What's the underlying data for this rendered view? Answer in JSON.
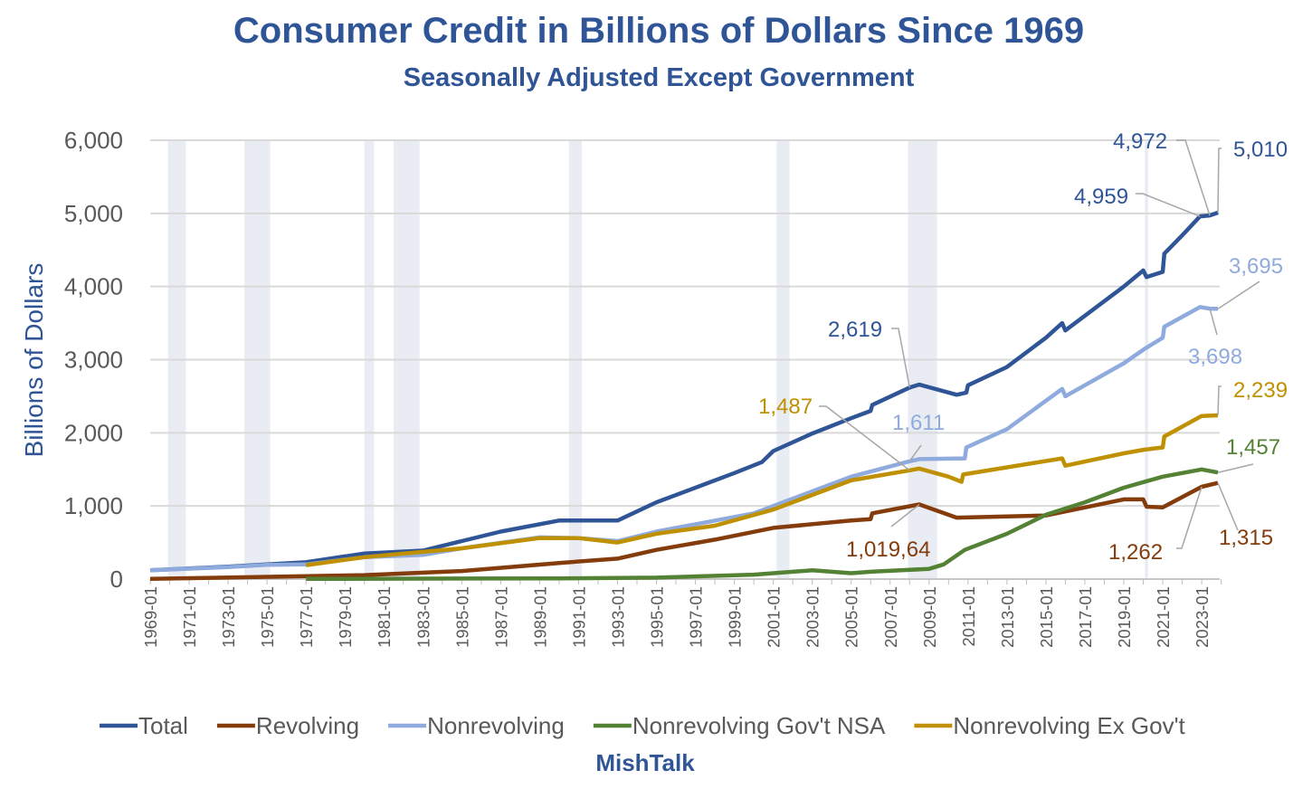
{
  "chart_data": {
    "type": "line",
    "title": "Consumer Credit in Billions of Dollars Since 1969",
    "subtitle": "Seasonally Adjusted Except Government",
    "ylabel": "Billions of Dollars",
    "xlabel": "",
    "ylim": [
      0,
      6000
    ],
    "yticks": [
      "0",
      "1,000",
      "2,000",
      "3,000",
      "4,000",
      "5,000",
      "6,000"
    ],
    "xticks": [
      "1969-01",
      "1971-01",
      "1973-01",
      "1975-01",
      "1977-01",
      "1979-01",
      "1981-01",
      "1983-01",
      "1985-01",
      "1987-01",
      "1989-01",
      "1991-01",
      "1993-01",
      "1995-01",
      "1997-01",
      "1999-01",
      "2001-01",
      "2003-01",
      "2005-01",
      "2007-01",
      "2009-01",
      "2011-01",
      "2013-01",
      "2015-01",
      "2017-01",
      "2019-01",
      "2021-01",
      "2023-01"
    ],
    "xlim": [
      "1969-01",
      "2023-11"
    ],
    "grid": "horizontal",
    "legend_position": "bottom",
    "recession_shading": [
      [
        "1969-12",
        "1970-11"
      ],
      [
        "1973-11",
        "1975-03"
      ],
      [
        "1980-01",
        "1980-07"
      ],
      [
        "1981-07",
        "1982-11"
      ],
      [
        "1990-07",
        "1991-03"
      ],
      [
        "2001-03",
        "2001-11"
      ],
      [
        "2007-12",
        "2009-06"
      ],
      [
        "2020-02",
        "2020-04"
      ]
    ],
    "series": [
      {
        "name": "Total",
        "color": "#2F5597",
        "points": [
          [
            "1969-01",
            120
          ],
          [
            "1973-01",
            170
          ],
          [
            "1975-01",
            200
          ],
          [
            "1977-01",
            230
          ],
          [
            "1980-01",
            350
          ],
          [
            "1983-01",
            390
          ],
          [
            "1985-01",
            520
          ],
          [
            "1987-01",
            650
          ],
          [
            "1990-01",
            800
          ],
          [
            "1993-01",
            800
          ],
          [
            "1995-01",
            1050
          ],
          [
            "1997-01",
            1250
          ],
          [
            "1999-01",
            1450
          ],
          [
            "2000-06",
            1600
          ],
          [
            "2001-01",
            1750
          ],
          [
            "2003-01",
            1990
          ],
          [
            "2005-01",
            2200
          ],
          [
            "2006-01",
            2300
          ],
          [
            "2006-02",
            2380
          ],
          [
            "2008-01",
            2619
          ],
          [
            "2008-07",
            2660
          ],
          [
            "2010-06",
            2520
          ],
          [
            "2010-12",
            2550
          ],
          [
            "2011-01",
            2650
          ],
          [
            "2013-01",
            2900
          ],
          [
            "2015-01",
            3300
          ],
          [
            "2015-11",
            3500
          ],
          [
            "2016-01",
            3400
          ],
          [
            "2019-01",
            4000
          ],
          [
            "2020-01",
            4220
          ],
          [
            "2020-03",
            4130
          ],
          [
            "2021-01",
            4200
          ],
          [
            "2021-02",
            4450
          ],
          [
            "2022-01",
            4700
          ],
          [
            "2022-12",
            4959
          ],
          [
            "2023-06",
            4972
          ],
          [
            "2023-11",
            5010
          ]
        ]
      },
      {
        "name": "Revolving",
        "color": "#843C0C",
        "points": [
          [
            "1969-01",
            2
          ],
          [
            "1977-01",
            40
          ],
          [
            "1980-01",
            55
          ],
          [
            "1985-01",
            110
          ],
          [
            "1990-01",
            220
          ],
          [
            "1993-01",
            280
          ],
          [
            "1995-01",
            400
          ],
          [
            "1998-01",
            540
          ],
          [
            "2001-01",
            700
          ],
          [
            "2005-01",
            800
          ],
          [
            "2006-01",
            820
          ],
          [
            "2006-02",
            900
          ],
          [
            "2008-07",
            1020
          ],
          [
            "2010-06",
            840
          ],
          [
            "2015-01",
            870
          ],
          [
            "2019-01",
            1090
          ],
          [
            "2020-01",
            1090
          ],
          [
            "2020-03",
            990
          ],
          [
            "2021-01",
            980
          ],
          [
            "2023-01",
            1262
          ],
          [
            "2023-11",
            1315
          ]
        ]
      },
      {
        "name": "Nonrevolving",
        "color": "#8FAADC",
        "points": [
          [
            "1969-01",
            120
          ],
          [
            "1973-01",
            165
          ],
          [
            "1975-01",
            195
          ],
          [
            "1977-01",
            200
          ],
          [
            "1980-01",
            300
          ],
          [
            "1983-01",
            330
          ],
          [
            "1985-01",
            420
          ],
          [
            "1989-01",
            570
          ],
          [
            "1991-01",
            560
          ],
          [
            "1993-01",
            520
          ],
          [
            "1995-01",
            650
          ],
          [
            "1997-01",
            750
          ],
          [
            "2000-01",
            900
          ],
          [
            "2002-01",
            1100
          ],
          [
            "2005-01",
            1400
          ],
          [
            "2008-01",
            1611
          ],
          [
            "2008-07",
            1640
          ],
          [
            "2010-11",
            1650
          ],
          [
            "2010-12",
            1800
          ],
          [
            "2013-01",
            2050
          ],
          [
            "2015-11",
            2600
          ],
          [
            "2016-01",
            2500
          ],
          [
            "2019-01",
            2950
          ],
          [
            "2020-02",
            3150
          ],
          [
            "2021-01",
            3300
          ],
          [
            "2021-02",
            3450
          ],
          [
            "2022-12",
            3720
          ],
          [
            "2023-06",
            3698
          ],
          [
            "2023-11",
            3695
          ]
        ]
      },
      {
        "name": "Nonrevolving Gov't NSA",
        "color": "#548235",
        "points": [
          [
            "1977-01",
            2
          ],
          [
            "1990-01",
            10
          ],
          [
            "1995-01",
            20
          ],
          [
            "2000-01",
            60
          ],
          [
            "2002-01",
            100
          ],
          [
            "2003-01",
            120
          ],
          [
            "2005-01",
            80
          ],
          [
            "2006-01",
            100
          ],
          [
            "2009-01",
            140
          ],
          [
            "2009-10",
            200
          ],
          [
            "2010-11",
            400
          ],
          [
            "2013-01",
            620
          ],
          [
            "2015-01",
            880
          ],
          [
            "2017-01",
            1050
          ],
          [
            "2019-01",
            1250
          ],
          [
            "2021-01",
            1400
          ],
          [
            "2023-01",
            1500
          ],
          [
            "2023-11",
            1457
          ]
        ]
      },
      {
        "name": "Nonrevolving Ex Gov't",
        "color": "#BF9000",
        "points": [
          [
            "1977-01",
            190
          ],
          [
            "1980-01",
            300
          ],
          [
            "1985-01",
            420
          ],
          [
            "1989-01",
            560
          ],
          [
            "1991-01",
            560
          ],
          [
            "1993-01",
            500
          ],
          [
            "1995-01",
            620
          ],
          [
            "1998-01",
            730
          ],
          [
            "2001-01",
            950
          ],
          [
            "2005-01",
            1350
          ],
          [
            "2008-01",
            1487
          ],
          [
            "2008-07",
            1510
          ],
          [
            "2010-01",
            1400
          ],
          [
            "2010-09",
            1330
          ],
          [
            "2010-10",
            1430
          ],
          [
            "2015-11",
            1650
          ],
          [
            "2016-01",
            1550
          ],
          [
            "2019-01",
            1720
          ],
          [
            "2020-02",
            1770
          ],
          [
            "2021-01",
            1800
          ],
          [
            "2021-02",
            1950
          ],
          [
            "2023-01",
            2230
          ],
          [
            "2023-11",
            2239
          ]
        ]
      }
    ],
    "annotations": [
      {
        "text": "2,619",
        "series": "Total",
        "date": "2008-01"
      },
      {
        "text": "1,487",
        "series": "Nonrevolving Ex Gov't",
        "date": "2008-01"
      },
      {
        "text": "1,611",
        "series": "Nonrevolving",
        "date": "2008-01"
      },
      {
        "text": "1,019,64",
        "series": "Revolving",
        "date": "2008-07"
      },
      {
        "text": "4,959",
        "series": "Total",
        "date": "2022-12"
      },
      {
        "text": "4,972",
        "series": "Total",
        "date": "2023-06"
      },
      {
        "text": "5,010",
        "series": "Total",
        "date": "2023-11"
      },
      {
        "text": "3,695",
        "series": "Nonrevolving",
        "date": "2023-11"
      },
      {
        "text": "3,698",
        "series": "Nonrevolving",
        "date": "2023-06"
      },
      {
        "text": "2,239",
        "series": "Nonrevolving Ex Gov't",
        "date": "2023-11"
      },
      {
        "text": "1,457",
        "series": "Nonrevolving Gov't NSA",
        "date": "2023-11"
      },
      {
        "text": "1,262",
        "series": "Revolving",
        "date": "2023-01"
      },
      {
        "text": "1,315",
        "series": "Revolving",
        "date": "2023-11"
      }
    ]
  },
  "footer": "MishTalk"
}
